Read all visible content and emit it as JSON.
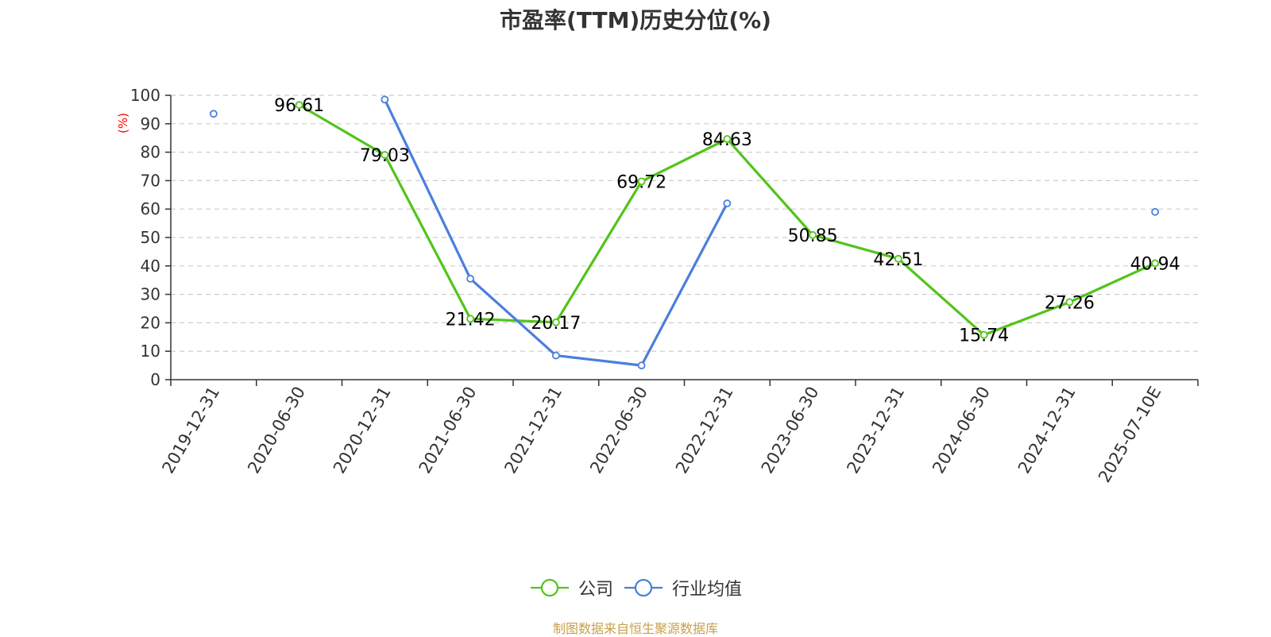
{
  "chart_data": {
    "type": "line",
    "title": "市盈率(TTM)历史分位(%)",
    "ylabel": "(%)",
    "ylim": [
      0,
      100
    ],
    "yticks": [
      0,
      10,
      20,
      30,
      40,
      50,
      60,
      70,
      80,
      90,
      100
    ],
    "grid": true,
    "legend_position": "bottom",
    "categories": [
      "2019-12-31",
      "2020-06-30",
      "2020-12-31",
      "2021-06-30",
      "2021-12-31",
      "2022-06-30",
      "2022-12-31",
      "2023-06-30",
      "2023-12-31",
      "2024-06-30",
      "2024-12-31",
      "2025-07-10E"
    ],
    "series": [
      {
        "name": "公司",
        "color": "#52c41a",
        "show_labels": true,
        "values": [
          null,
          96.61,
          79.03,
          21.42,
          20.17,
          69.72,
          84.63,
          50.85,
          42.51,
          15.74,
          27.26,
          40.94
        ],
        "labels": [
          "",
          "96.61",
          "79.03",
          "21.42",
          "20.17",
          "69.72",
          "84.63",
          "50.85",
          "42.51",
          "15.74",
          "27.26",
          "40.94"
        ]
      },
      {
        "name": "行业均值",
        "color": "#4a7fdc",
        "show_labels": false,
        "values": [
          93.5,
          null,
          98.5,
          35.5,
          8.5,
          5.0,
          62.0,
          null,
          null,
          null,
          null,
          59.0
        ]
      }
    ]
  },
  "source_note": "制图数据来自恒生聚源数据库",
  "colors": {
    "axis": "#333333",
    "grid": "#cccccc",
    "ylabel": "#ff0000",
    "source": "#c8a04b"
  }
}
